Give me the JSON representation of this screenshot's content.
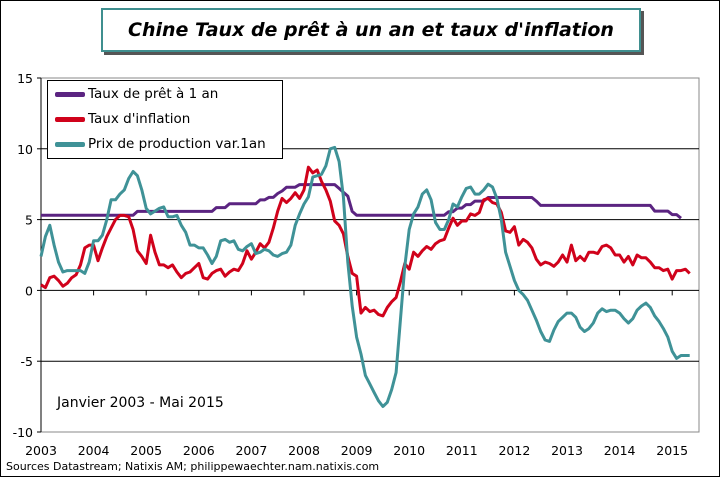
{
  "chart_data": {
    "type": "line",
    "title": "Chine Taux de prêt à un an et taux d'inflation",
    "annotation": "Janvier 2003 - Mai 2015",
    "source": "Sources Datastream; Natixis AM; philippewaechter.nam.natixis.com",
    "x_start": "2003-01",
    "x_end": "2015-05",
    "x_frequency": "monthly",
    "x_tick_labels": [
      "2003",
      "2004",
      "2005",
      "2006",
      "2007",
      "2008",
      "2009",
      "2010",
      "2011",
      "2012",
      "2013",
      "2014",
      "2015"
    ],
    "ylim": [
      -10,
      15
    ],
    "y_ticks": [
      15,
      10,
      5,
      0,
      -5,
      -10
    ],
    "grid": "horizontal",
    "legend_position": "top-left",
    "series": [
      {
        "name": "Taux de prêt à 1 an",
        "color": "#5b2481",
        "values": [
          5.31,
          5.31,
          5.31,
          5.31,
          5.31,
          5.31,
          5.31,
          5.31,
          5.31,
          5.31,
          5.31,
          5.31,
          5.31,
          5.31,
          5.31,
          5.31,
          5.31,
          5.31,
          5.31,
          5.31,
          5.31,
          5.31,
          5.58,
          5.58,
          5.58,
          5.58,
          5.58,
          5.58,
          5.58,
          5.58,
          5.58,
          5.58,
          5.58,
          5.58,
          5.58,
          5.58,
          5.58,
          5.58,
          5.58,
          5.58,
          5.85,
          5.85,
          5.85,
          6.12,
          6.12,
          6.12,
          6.12,
          6.12,
          6.12,
          6.12,
          6.39,
          6.39,
          6.57,
          6.57,
          6.84,
          7.02,
          7.29,
          7.29,
          7.29,
          7.47,
          7.47,
          7.47,
          7.47,
          7.47,
          7.47,
          7.47,
          7.47,
          7.47,
          7.2,
          6.93,
          6.66,
          5.58,
          5.31,
          5.31,
          5.31,
          5.31,
          5.31,
          5.31,
          5.31,
          5.31,
          5.31,
          5.31,
          5.31,
          5.31,
          5.31,
          5.31,
          5.31,
          5.31,
          5.31,
          5.31,
          5.31,
          5.31,
          5.31,
          5.56,
          5.56,
          5.81,
          5.81,
          6.06,
          6.06,
          6.31,
          6.31,
          6.31,
          6.56,
          6.56,
          6.56,
          6.56,
          6.56,
          6.56,
          6.56,
          6.56,
          6.56,
          6.56,
          6.56,
          6.31,
          6.0,
          6.0,
          6.0,
          6.0,
          6.0,
          6.0,
          6.0,
          6.0,
          6.0,
          6.0,
          6.0,
          6.0,
          6.0,
          6.0,
          6.0,
          6.0,
          6.0,
          6.0,
          6.0,
          6.0,
          6.0,
          6.0,
          6.0,
          6.0,
          6.0,
          6.0,
          5.6,
          5.6,
          5.6,
          5.6,
          5.35,
          5.35,
          5.1
        ]
      },
      {
        "name": "Taux d'inflation",
        "color": "#d0021b",
        "values": [
          0.4,
          0.2,
          0.9,
          1.0,
          0.7,
          0.3,
          0.5,
          0.9,
          1.1,
          1.8,
          3.0,
          3.2,
          3.2,
          2.1,
          3.0,
          3.8,
          4.4,
          5.0,
          5.3,
          5.3,
          5.2,
          4.3,
          2.8,
          2.4,
          1.9,
          3.9,
          2.7,
          1.8,
          1.8,
          1.6,
          1.8,
          1.3,
          0.9,
          1.2,
          1.3,
          1.6,
          1.9,
          0.9,
          0.8,
          1.2,
          1.4,
          1.5,
          1.0,
          1.3,
          1.5,
          1.4,
          1.9,
          2.8,
          2.2,
          2.7,
          3.3,
          3.0,
          3.4,
          4.4,
          5.6,
          6.5,
          6.2,
          6.5,
          6.9,
          6.5,
          7.1,
          8.7,
          8.3,
          8.5,
          7.7,
          7.1,
          6.3,
          4.9,
          4.6,
          4.0,
          2.4,
          1.2,
          1.0,
          -1.6,
          -1.2,
          -1.5,
          -1.4,
          -1.7,
          -1.8,
          -1.2,
          -0.8,
          -0.5,
          0.6,
          1.9,
          1.5,
          2.7,
          2.4,
          2.8,
          3.1,
          2.9,
          3.3,
          3.5,
          3.6,
          4.4,
          5.1,
          4.6,
          4.9,
          4.9,
          5.4,
          5.3,
          5.5,
          6.4,
          6.5,
          6.2,
          6.1,
          5.5,
          4.2,
          4.1,
          4.5,
          3.2,
          3.6,
          3.4,
          3.0,
          2.2,
          1.8,
          2.0,
          1.9,
          1.7,
          2.0,
          2.5,
          2.0,
          3.2,
          2.1,
          2.4,
          2.1,
          2.7,
          2.7,
          2.6,
          3.1,
          3.2,
          3.0,
          2.5,
          2.5,
          2.0,
          2.4,
          1.8,
          2.5,
          2.3,
          2.3,
          2.0,
          1.6,
          1.6,
          1.4,
          1.5,
          0.8,
          1.4,
          1.4,
          1.5,
          1.2
        ]
      },
      {
        "name": "Prix de production var.1an",
        "color": "#3f9297",
        "values": [
          2.4,
          3.8,
          4.6,
          3.2,
          2.0,
          1.3,
          1.4,
          1.4,
          1.4,
          1.4,
          1.2,
          2.0,
          3.5,
          3.5,
          3.9,
          5.0,
          6.4,
          6.4,
          6.8,
          7.1,
          7.9,
          8.4,
          8.1,
          7.1,
          5.8,
          5.4,
          5.6,
          5.8,
          5.9,
          5.2,
          5.2,
          5.3,
          4.6,
          4.1,
          3.2,
          3.2,
          3.0,
          3.0,
          2.5,
          1.9,
          2.4,
          3.5,
          3.6,
          3.4,
          3.5,
          2.9,
          2.8,
          3.1,
          3.3,
          2.6,
          2.7,
          2.9,
          2.8,
          2.5,
          2.4,
          2.6,
          2.7,
          3.2,
          4.6,
          5.4,
          6.1,
          6.6,
          8.0,
          8.1,
          8.2,
          8.8,
          10.0,
          10.1,
          9.1,
          6.6,
          2.0,
          -1.1,
          -3.3,
          -4.5,
          -6.0,
          -6.6,
          -7.2,
          -7.8,
          -8.2,
          -7.9,
          -7.0,
          -5.8,
          -2.1,
          1.7,
          4.3,
          5.4,
          5.9,
          6.8,
          7.1,
          6.4,
          4.8,
          4.3,
          4.3,
          5.0,
          6.1,
          5.9,
          6.6,
          7.2,
          7.3,
          6.8,
          6.8,
          7.1,
          7.5,
          7.3,
          6.5,
          5.0,
          2.7,
          1.7,
          0.7,
          0.0,
          -0.3,
          -0.7,
          -1.4,
          -2.1,
          -2.9,
          -3.5,
          -3.6,
          -2.8,
          -2.2,
          -1.9,
          -1.6,
          -1.6,
          -1.9,
          -2.6,
          -2.9,
          -2.7,
          -2.3,
          -1.6,
          -1.3,
          -1.5,
          -1.4,
          -1.4,
          -1.6,
          -2.0,
          -2.3,
          -2.0,
          -1.4,
          -1.1,
          -0.9,
          -1.2,
          -1.8,
          -2.2,
          -2.7,
          -3.3,
          -4.3,
          -4.8,
          -4.6,
          -4.6,
          -4.6
        ]
      }
    ]
  }
}
